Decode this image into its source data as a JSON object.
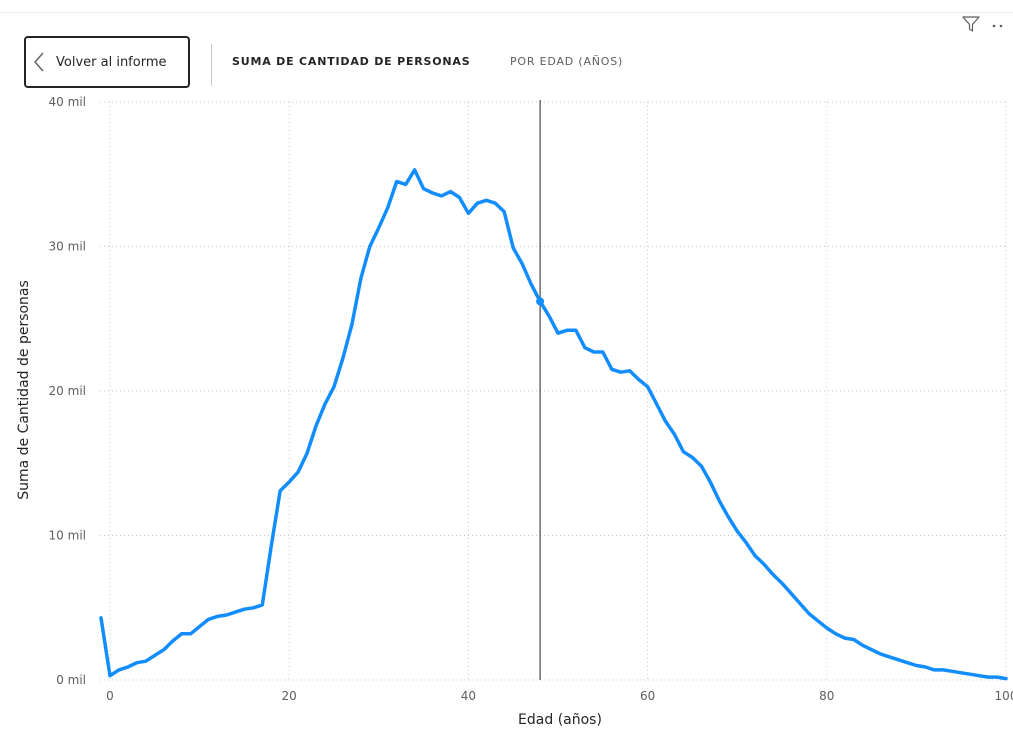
{
  "header": {
    "back_label": "Volver al informe",
    "crumb_measure": "SUMA DE CANTIDAD DE PERSONAS",
    "crumb_axis": "POR EDAD (AÑOS)"
  },
  "icons": {
    "filter": "filter-icon",
    "more": "more-options-icon",
    "back": "chevron-left-icon"
  },
  "colors": {
    "line": "#118DFF",
    "crosshair": "#252423",
    "grid": "#c8c6c4",
    "text": "#252423",
    "axis_text": "#605e5c"
  },
  "chart_data": {
    "type": "line",
    "title": "",
    "xlabel": "Edad (años)",
    "ylabel": "Suma de Cantidad de personas",
    "xlim": [
      -1,
      100
    ],
    "ylim": [
      0,
      40000
    ],
    "x_ticks": [
      0,
      20,
      40,
      60,
      80,
      100
    ],
    "x_tick_labels": [
      "0",
      "20",
      "40",
      "60",
      "80",
      "100"
    ],
    "y_ticks": [
      0,
      10000,
      20000,
      30000,
      40000
    ],
    "y_tick_labels": [
      "0 mil",
      "10 mil",
      "20 mil",
      "30 mil",
      "40 mil"
    ],
    "grid": true,
    "legend": "none",
    "series": [
      {
        "x": [
          -1,
          0,
          1,
          2,
          3,
          4,
          5,
          6,
          7,
          8,
          9,
          10,
          11,
          12,
          13,
          14,
          15,
          16,
          17,
          18,
          19,
          20,
          21,
          22,
          23,
          24,
          25,
          26,
          27,
          28,
          29,
          30,
          31,
          32,
          33,
          34,
          35,
          36,
          37,
          38,
          39,
          40,
          41,
          42,
          43,
          44,
          45,
          46,
          47,
          48,
          49,
          50,
          51,
          52,
          53,
          54,
          55,
          56,
          57,
          58,
          59,
          60,
          61,
          62,
          63,
          64,
          65,
          66,
          67,
          68,
          69,
          70,
          71,
          72,
          73,
          74,
          75,
          76,
          77,
          78,
          79,
          80,
          81,
          82,
          83,
          84,
          85,
          86,
          87,
          88,
          89,
          90,
          91,
          92,
          93,
          94,
          95,
          96,
          97,
          98,
          99,
          100
        ],
        "y": [
          4300,
          300,
          700,
          900,
          1200,
          1300,
          1700,
          2100,
          2700,
          3200,
          3200,
          3700,
          4200,
          4400,
          4500,
          4700,
          4900,
          5000,
          5200,
          9300,
          13100,
          13700,
          14400,
          15700,
          17600,
          19100,
          20300,
          22300,
          24600,
          27800,
          30000,
          31300,
          32700,
          34500,
          34300,
          35300,
          34000,
          33700,
          33500,
          33800,
          33400,
          32300,
          33000,
          33200,
          33000,
          32400,
          29900,
          28800,
          27400,
          26200,
          25200,
          24000,
          24200,
          24200,
          23000,
          22700,
          22700,
          21500,
          21300,
          21400,
          20800,
          20300,
          19100,
          17900,
          17000,
          15800,
          15400,
          14800,
          13700,
          12400,
          11300,
          10300,
          9500,
          8600,
          8000,
          7300,
          6700,
          6000,
          5300,
          4600,
          4100,
          3600,
          3200,
          2900,
          2800,
          2400,
          2100,
          1800,
          1600,
          1400,
          1200,
          1000,
          900,
          700,
          700,
          600,
          500,
          400,
          300,
          200,
          200,
          100
        ]
      }
    ],
    "highlight": {
      "x": 48,
      "y": 26200
    }
  }
}
